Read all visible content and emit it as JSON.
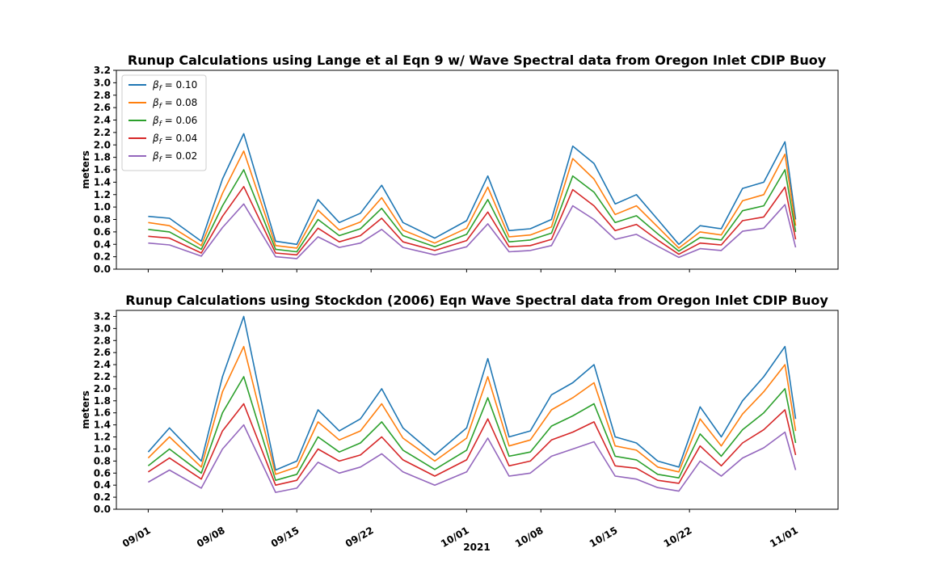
{
  "figure": {
    "xlabel": "2021"
  },
  "chart_data": [
    {
      "type": "line",
      "title": "Runup Calculations using Lange et al Eqn 9 w/ Wave Spectral data from Oregon Inlet CDIP Buoy",
      "xlabel": "",
      "ylabel": "meters",
      "ylim": [
        0.0,
        3.2
      ],
      "yticks": [
        0.0,
        0.2,
        0.4,
        0.6,
        0.8,
        1.0,
        1.2,
        1.4,
        1.6,
        1.8,
        2.0,
        2.2,
        2.4,
        2.6,
        2.8,
        3.0,
        3.2
      ],
      "ytick_labels": [
        "0.0",
        "0.2",
        "0.4",
        "0.6",
        "0.8",
        "1.0",
        "1.2",
        "1.4",
        "1.6",
        "1.8",
        "2.0",
        "2.2",
        "2.4",
        "2.6",
        "2.8",
        "3.0",
        "3.2"
      ],
      "xlim": [
        "2021-08-29",
        "2021-11-05"
      ],
      "xticks": [
        "2021-09-01",
        "2021-09-08",
        "2021-09-15",
        "2021-09-22",
        "2021-10-01",
        "2021-10-08",
        "2021-10-15",
        "2021-10-22",
        "2021-11-01"
      ],
      "xtick_labels": [],
      "grid": false,
      "legend": {
        "placement": "upper-left",
        "prefix": "β",
        "subscript": "f",
        "equals": " =  "
      },
      "x": [
        "2021-09-01",
        "2021-09-03",
        "2021-09-06",
        "2021-09-08",
        "2021-09-10",
        "2021-09-13",
        "2021-09-15",
        "2021-09-17",
        "2021-09-19",
        "2021-09-21",
        "2021-09-23",
        "2021-09-25",
        "2021-09-28",
        "2021-10-01",
        "2021-10-03",
        "2021-10-05",
        "2021-10-07",
        "2021-10-09",
        "2021-10-11",
        "2021-10-13",
        "2021-10-15",
        "2021-10-17",
        "2021-10-19",
        "2021-10-21",
        "2021-10-23",
        "2021-10-25",
        "2021-10-27",
        "2021-10-29",
        "2021-10-31",
        "2021-11-01"
      ],
      "series": [
        {
          "name": "0.10",
          "color": "#1f77b4",
          "values": [
            0.85,
            0.82,
            0.45,
            1.45,
            2.18,
            0.45,
            0.4,
            1.12,
            0.75,
            0.9,
            1.35,
            0.75,
            0.5,
            0.78,
            1.5,
            0.62,
            0.65,
            0.8,
            1.98,
            1.7,
            1.05,
            1.2,
            0.8,
            0.4,
            0.7,
            0.65,
            1.3,
            1.4,
            2.05,
            0.8
          ]
        },
        {
          "name": "0.08",
          "color": "#ff7f0e",
          "values": [
            0.75,
            0.7,
            0.38,
            1.22,
            1.9,
            0.38,
            0.34,
            0.95,
            0.63,
            0.76,
            1.15,
            0.63,
            0.42,
            0.66,
            1.32,
            0.52,
            0.55,
            0.68,
            1.78,
            1.45,
            0.88,
            1.02,
            0.68,
            0.34,
            0.6,
            0.55,
            1.1,
            1.2,
            1.85,
            0.7
          ]
        },
        {
          "name": "0.06",
          "color": "#2ca02c",
          "values": [
            0.64,
            0.6,
            0.32,
            1.02,
            1.6,
            0.32,
            0.28,
            0.8,
            0.54,
            0.65,
            0.98,
            0.54,
            0.36,
            0.56,
            1.12,
            0.44,
            0.47,
            0.58,
            1.5,
            1.24,
            0.75,
            0.86,
            0.57,
            0.29,
            0.51,
            0.47,
            0.94,
            1.02,
            1.6,
            0.6
          ]
        },
        {
          "name": "0.04",
          "color": "#d62728",
          "values": [
            0.53,
            0.5,
            0.26,
            0.85,
            1.33,
            0.26,
            0.23,
            0.66,
            0.44,
            0.54,
            0.82,
            0.44,
            0.3,
            0.46,
            0.92,
            0.36,
            0.38,
            0.48,
            1.28,
            1.02,
            0.62,
            0.72,
            0.47,
            0.24,
            0.42,
            0.39,
            0.78,
            0.84,
            1.32,
            0.48
          ]
        },
        {
          "name": "0.02",
          "color": "#9467bd",
          "values": [
            0.42,
            0.39,
            0.21,
            0.67,
            1.05,
            0.2,
            0.17,
            0.52,
            0.35,
            0.42,
            0.64,
            0.35,
            0.23,
            0.36,
            0.73,
            0.28,
            0.3,
            0.38,
            1.02,
            0.8,
            0.48,
            0.56,
            0.37,
            0.19,
            0.33,
            0.3,
            0.61,
            0.66,
            1.04,
            0.35
          ]
        }
      ]
    },
    {
      "type": "line",
      "title": "Runup Calculations using Stockdon (2006) Eqn Wave Spectral data from Oregon Inlet CDIP Buoy",
      "xlabel": "2021",
      "ylabel": "meters",
      "ylim": [
        0.0,
        3.3
      ],
      "yticks": [
        0.0,
        0.2,
        0.4,
        0.6,
        0.8,
        1.0,
        1.2,
        1.4,
        1.6,
        1.8,
        2.0,
        2.2,
        2.4,
        2.6,
        2.8,
        3.0,
        3.2
      ],
      "ytick_labels": [
        "0.0",
        "0.2",
        "0.4",
        "0.6",
        "0.8",
        "1.0",
        "1.2",
        "1.4",
        "1.6",
        "1.8",
        "2.0",
        "2.2",
        "2.4",
        "2.6",
        "2.8",
        "3.0",
        "3.2"
      ],
      "xlim": [
        "2021-08-29",
        "2021-11-05"
      ],
      "xticks": [
        "2021-09-01",
        "2021-09-08",
        "2021-09-15",
        "2021-09-22",
        "2021-10-01",
        "2021-10-08",
        "2021-10-15",
        "2021-10-22",
        "2021-11-01"
      ],
      "xtick_labels": [
        "09/01",
        "09/08",
        "09/15",
        "09/22",
        "10/01",
        "10/08",
        "10/15",
        "10/22",
        "11/01"
      ],
      "grid": false,
      "x": [
        "2021-09-01",
        "2021-09-03",
        "2021-09-06",
        "2021-09-08",
        "2021-09-10",
        "2021-09-13",
        "2021-09-15",
        "2021-09-17",
        "2021-09-19",
        "2021-09-21",
        "2021-09-23",
        "2021-09-25",
        "2021-09-28",
        "2021-10-01",
        "2021-10-03",
        "2021-10-05",
        "2021-10-07",
        "2021-10-09",
        "2021-10-11",
        "2021-10-13",
        "2021-10-15",
        "2021-10-17",
        "2021-10-19",
        "2021-10-21",
        "2021-10-23",
        "2021-10-25",
        "2021-10-27",
        "2021-10-29",
        "2021-10-31",
        "2021-11-01"
      ],
      "series": [
        {
          "name": "0.10",
          "color": "#1f77b4",
          "values": [
            0.95,
            1.35,
            0.8,
            2.2,
            3.2,
            0.65,
            0.8,
            1.65,
            1.3,
            1.5,
            2.0,
            1.35,
            0.9,
            1.35,
            2.5,
            1.2,
            1.3,
            1.9,
            2.1,
            2.4,
            1.2,
            1.1,
            0.8,
            0.7,
            1.7,
            1.2,
            1.8,
            2.2,
            2.7,
            1.5
          ]
        },
        {
          "name": "0.08",
          "color": "#ff7f0e",
          "values": [
            0.85,
            1.2,
            0.7,
            1.95,
            2.7,
            0.58,
            0.7,
            1.45,
            1.15,
            1.3,
            1.75,
            1.18,
            0.8,
            1.18,
            2.2,
            1.05,
            1.15,
            1.65,
            1.85,
            2.1,
            1.05,
            0.98,
            0.7,
            0.62,
            1.5,
            1.05,
            1.58,
            1.95,
            2.4,
            1.3
          ]
        },
        {
          "name": "0.06",
          "color": "#2ca02c",
          "values": [
            0.72,
            1.0,
            0.6,
            1.6,
            2.2,
            0.48,
            0.58,
            1.2,
            0.95,
            1.1,
            1.45,
            0.98,
            0.66,
            0.98,
            1.85,
            0.88,
            0.95,
            1.38,
            1.55,
            1.75,
            0.88,
            0.82,
            0.58,
            0.52,
            1.25,
            0.88,
            1.32,
            1.6,
            2.0,
            1.1
          ]
        },
        {
          "name": "0.04",
          "color": "#d62728",
          "values": [
            0.62,
            0.85,
            0.5,
            1.3,
            1.75,
            0.4,
            0.48,
            1.0,
            0.8,
            0.9,
            1.2,
            0.82,
            0.55,
            0.82,
            1.5,
            0.72,
            0.8,
            1.15,
            1.28,
            1.45,
            0.72,
            0.68,
            0.48,
            0.43,
            1.05,
            0.72,
            1.1,
            1.32,
            1.65,
            0.9
          ]
        },
        {
          "name": "0.02",
          "color": "#9467bd",
          "values": [
            0.45,
            0.65,
            0.35,
            1.0,
            1.4,
            0.28,
            0.35,
            0.78,
            0.6,
            0.7,
            0.92,
            0.62,
            0.4,
            0.62,
            1.18,
            0.55,
            0.6,
            0.88,
            1.0,
            1.12,
            0.55,
            0.5,
            0.36,
            0.3,
            0.8,
            0.55,
            0.85,
            1.02,
            1.28,
            0.65
          ]
        }
      ]
    }
  ]
}
